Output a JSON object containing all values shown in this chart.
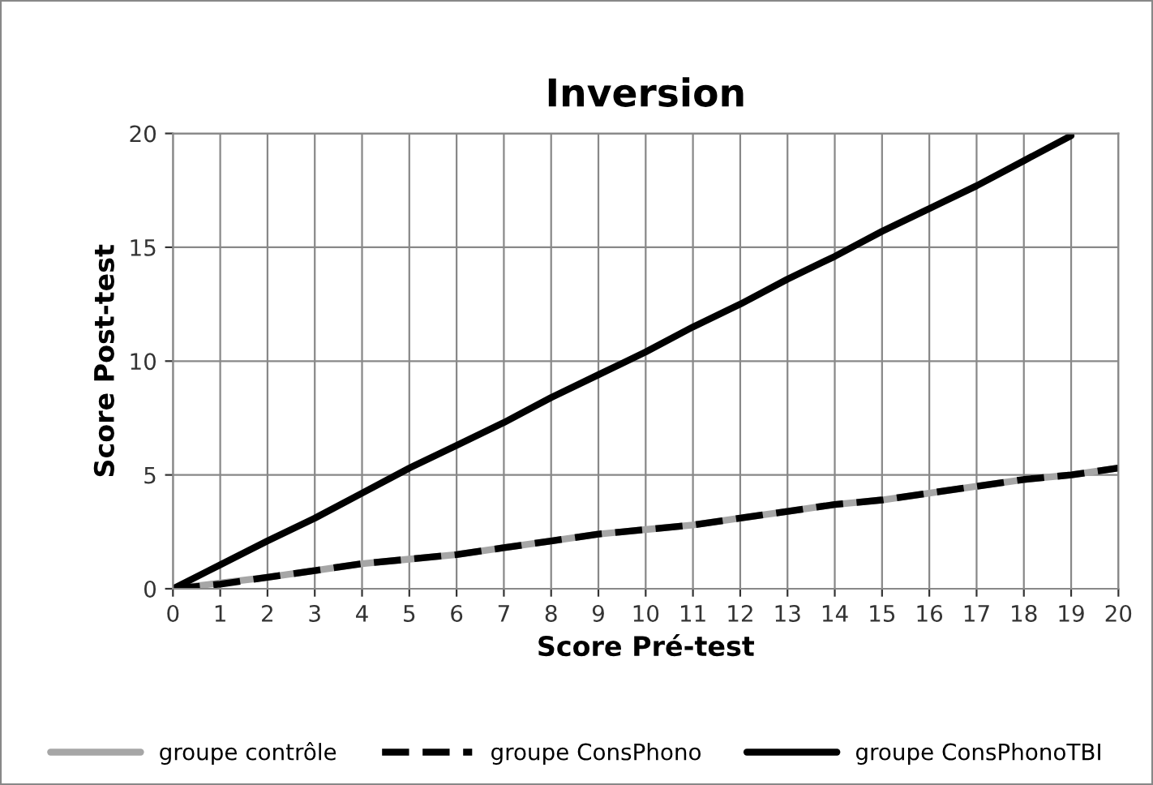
{
  "chart_data": {
    "type": "line",
    "title": "Inversion",
    "xlabel": "Score Pré-test",
    "ylabel": "Score Post-test",
    "x": [
      0,
      1,
      2,
      3,
      4,
      5,
      6,
      7,
      8,
      9,
      10,
      11,
      12,
      13,
      14,
      15,
      16,
      17,
      18,
      19,
      20
    ],
    "series": [
      {
        "name": "groupe contrôle",
        "color": "#a6a6a6",
        "line_style": "solid",
        "values": [
          0,
          0.25,
          0.5,
          0.8,
          1.1,
          1.3,
          1.5,
          1.8,
          2.1,
          2.4,
          2.6,
          2.8,
          3.1,
          3.4,
          3.7,
          3.9,
          4.2,
          4.5,
          4.8,
          5.0,
          5.3
        ]
      },
      {
        "name": "groupe ConsPhono",
        "color": "#000000",
        "line_style": "dashed",
        "values": [
          0,
          0.2,
          0.5,
          0.8,
          1.1,
          1.3,
          1.5,
          1.8,
          2.1,
          2.4,
          2.6,
          2.8,
          3.1,
          3.4,
          3.7,
          3.9,
          4.2,
          4.5,
          4.8,
          5.0,
          5.3
        ]
      },
      {
        "name": "groupe ConsPhonoTBI",
        "color": "#000000",
        "line_style": "solid",
        "values": [
          0,
          1.05,
          2.1,
          3.1,
          4.2,
          5.3,
          6.3,
          7.3,
          8.4,
          9.4,
          10.4,
          11.5,
          12.5,
          13.6,
          14.6,
          15.7,
          16.7,
          17.7,
          18.8,
          19.9,
          null
        ]
      }
    ],
    "xlim": [
      0,
      20
    ],
    "xticks": [
      0,
      1,
      2,
      3,
      4,
      5,
      6,
      7,
      8,
      9,
      10,
      11,
      12,
      13,
      14,
      15,
      16,
      17,
      18,
      19,
      20
    ],
    "ylim": [
      0,
      20
    ],
    "yticks": [
      0,
      5,
      10,
      15,
      20
    ],
    "grid": true,
    "legend": "bottom",
    "marker": "none"
  }
}
